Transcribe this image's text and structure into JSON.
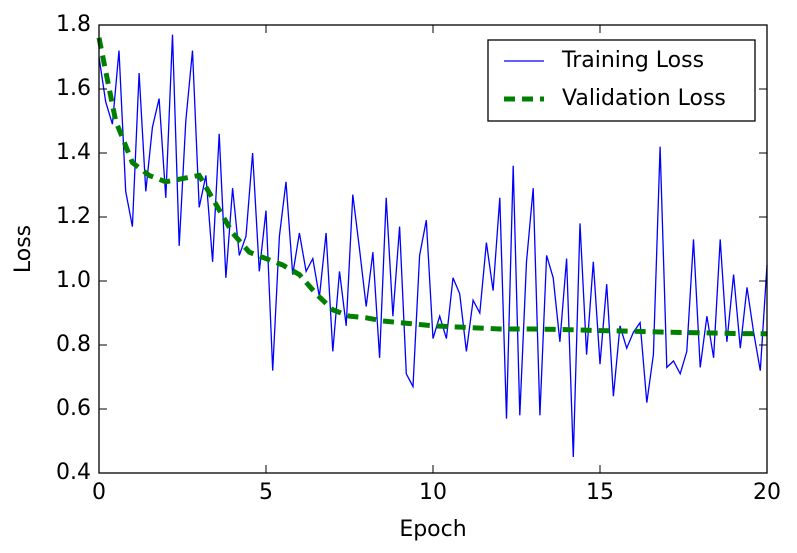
{
  "chart_data": {
    "type": "line",
    "xlabel": "Epoch",
    "ylabel": "Loss",
    "xlim": [
      0,
      20
    ],
    "xticks": [
      0,
      5,
      10,
      15,
      20
    ],
    "ylim": [
      0.4,
      1.8
    ],
    "yticks": [
      0.4,
      0.6,
      0.8,
      {
        "value": 1,
        "label": "1.0"
      },
      1.2,
      1.4,
      1.6,
      1.8
    ],
    "legend": "upper right",
    "series": [
      {
        "name": "Training Loss",
        "color": "#0000ff",
        "style": "solid",
        "x": [
          0,
          0.2,
          0.4,
          0.6,
          0.8,
          1,
          1.2,
          1.4,
          1.6,
          1.8,
          2,
          2.2,
          2.4,
          2.6,
          2.8,
          3,
          3.2,
          3.4,
          3.6,
          3.8,
          4,
          4.2,
          4.4,
          4.6,
          4.8,
          5,
          5.2,
          5.4,
          5.6,
          5.8,
          6,
          6.2,
          6.4,
          6.6,
          6.8,
          7,
          7.2,
          7.4,
          7.6,
          7.8,
          8,
          8.2,
          8.4,
          8.6,
          8.8,
          9,
          9.2,
          9.4,
          9.6,
          9.8,
          10,
          10.2,
          10.4,
          10.6,
          10.8,
          11,
          11.2,
          11.4,
          11.6,
          11.8,
          12,
          12.2,
          12.4,
          12.6,
          12.8,
          13,
          13.2,
          13.4,
          13.6,
          13.8,
          14,
          14.2,
          14.4,
          14.6,
          14.8,
          15,
          15.2,
          15.4,
          15.6,
          15.8,
          16,
          16.2,
          16.4,
          16.6,
          16.8,
          17,
          17.2,
          17.4,
          17.6,
          17.8,
          18,
          18.2,
          18.4,
          18.6,
          18.8,
          19,
          19.2,
          19.4,
          19.6,
          19.8,
          20
        ],
        "values": [
          1.7,
          1.56,
          1.49,
          1.72,
          1.28,
          1.17,
          1.65,
          1.28,
          1.48,
          1.57,
          1.26,
          1.77,
          1.11,
          1.5,
          1.72,
          1.23,
          1.33,
          1.06,
          1.46,
          1.01,
          1.29,
          1.08,
          1.14,
          1.4,
          1.03,
          1.22,
          0.72,
          1.14,
          1.31,
          1.02,
          1.15,
          1.03,
          1.07,
          0.95,
          1.15,
          0.78,
          1.03,
          0.86,
          1.27,
          1.1,
          0.92,
          1.09,
          0.76,
          1.26,
          0.89,
          1.17,
          0.71,
          0.67,
          1.08,
          1.19,
          0.82,
          0.89,
          0.82,
          1.01,
          0.96,
          0.78,
          0.94,
          0.9,
          1.12,
          0.97,
          1.26,
          0.57,
          1.36,
          0.58,
          1.06,
          1.29,
          0.58,
          1.08,
          1.01,
          0.81,
          1.07,
          0.45,
          1.18,
          0.77,
          1.06,
          0.74,
          0.99,
          0.64,
          0.86,
          0.79,
          0.84,
          0.87,
          0.62,
          0.77,
          1.42,
          0.73,
          0.75,
          0.71,
          0.78,
          1.13,
          0.73,
          0.89,
          0.76,
          1.13,
          0.81,
          1.02,
          0.79,
          0.98,
          0.84,
          0.72,
          1.05
        ]
      },
      {
        "name": "Validation Loss",
        "color": "#008000",
        "style": "dashed",
        "x": [
          0,
          0.5,
          1,
          1.5,
          2,
          2.5,
          3,
          3.5,
          4,
          4.5,
          5,
          5.5,
          6,
          6.5,
          7,
          7.5,
          8,
          8.5,
          9,
          9.5,
          10,
          11,
          12,
          13,
          14,
          15,
          16,
          17,
          18,
          19,
          20
        ],
        "values": [
          1.76,
          1.5,
          1.37,
          1.33,
          1.31,
          1.32,
          1.33,
          1.24,
          1.15,
          1.09,
          1.07,
          1.05,
          1.02,
          0.96,
          0.91,
          0.89,
          0.885,
          0.875,
          0.87,
          0.865,
          0.86,
          0.855,
          0.85,
          0.85,
          0.848,
          0.845,
          0.843,
          0.84,
          0.838,
          0.836,
          0.835
        ]
      }
    ]
  }
}
